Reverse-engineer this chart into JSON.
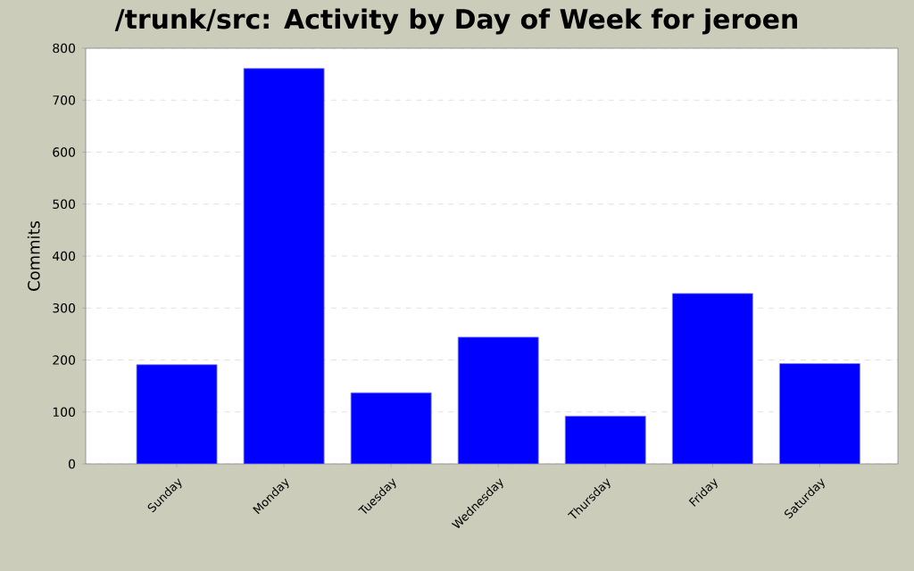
{
  "chart_data": {
    "type": "bar",
    "title": "/trunk/src: Activity by Day of Week for jeroen",
    "ylabel": "Commits",
    "categories": [
      "Sunday",
      "Monday",
      "Tuesday",
      "Wednesday",
      "Thursday",
      "Friday",
      "Saturday"
    ],
    "values": [
      191,
      761,
      137,
      244,
      92,
      328,
      193
    ],
    "color": "#0000ff",
    "ylim": [
      0,
      800
    ],
    "yticks": [
      0,
      100,
      200,
      300,
      400,
      500,
      600,
      700,
      800
    ],
    "grid": "y"
  }
}
